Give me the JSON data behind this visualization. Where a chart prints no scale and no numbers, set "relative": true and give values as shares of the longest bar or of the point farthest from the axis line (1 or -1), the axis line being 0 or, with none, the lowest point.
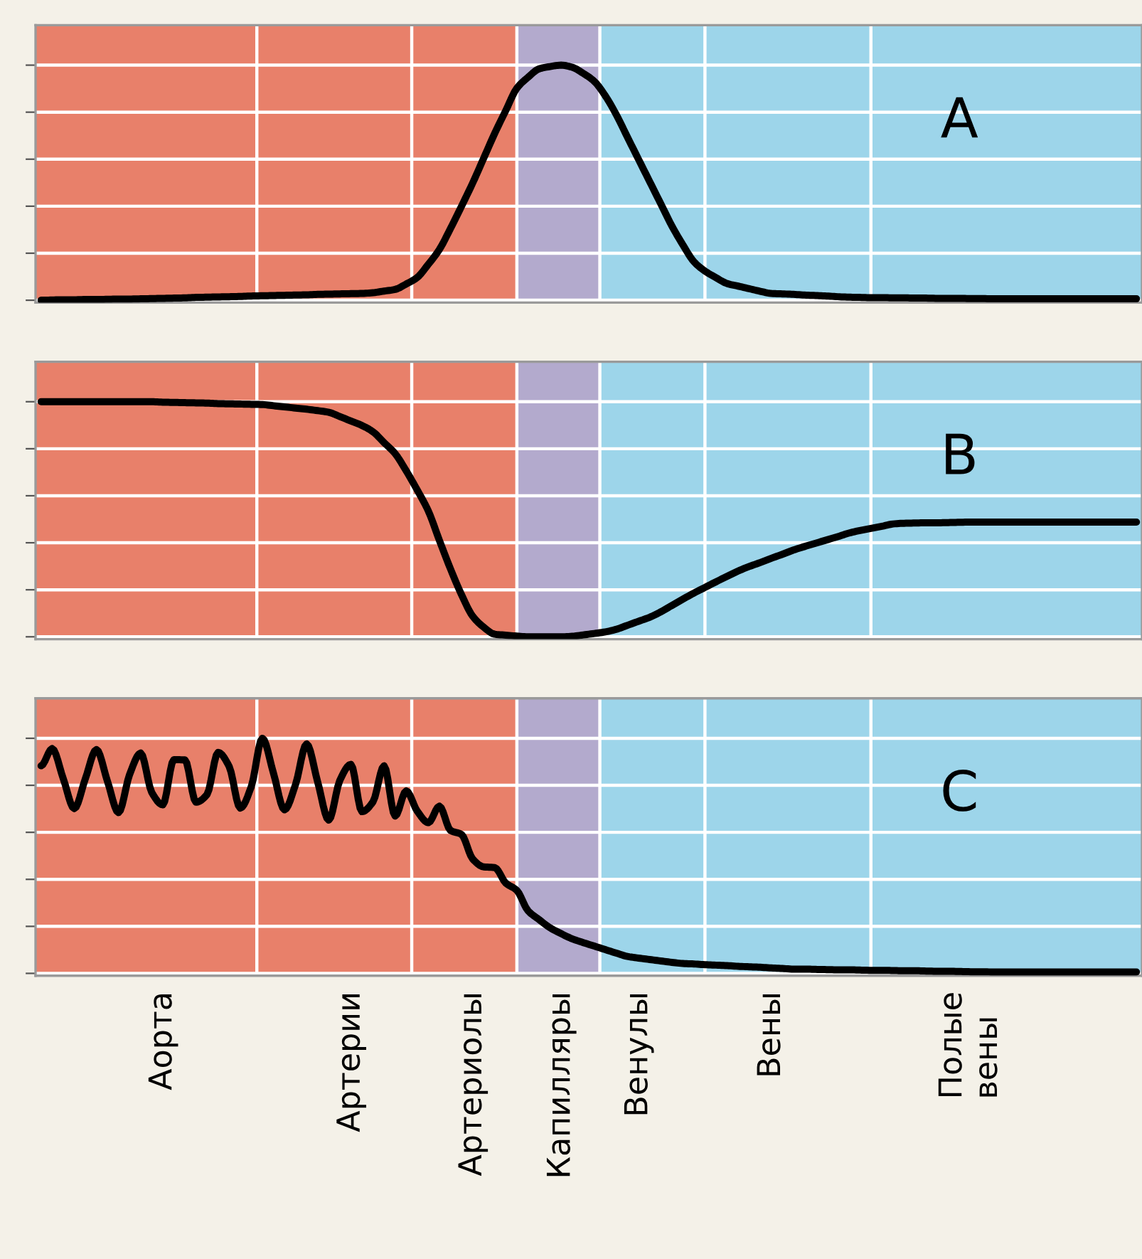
{
  "chart_data": [
    {
      "type": "line",
      "relative": true,
      "grid": true,
      "annotations": [
        "A"
      ],
      "categories": [
        null,
        null,
        null,
        null,
        null,
        null,
        null,
        null,
        null,
        null,
        null,
        null,
        null,
        null,
        null,
        null,
        null,
        null,
        null,
        null,
        null,
        null,
        null,
        null,
        null,
        null,
        null,
        null,
        null,
        null,
        null,
        null,
        null,
        null,
        null,
        null,
        null,
        null,
        null,
        null,
        null,
        null,
        null,
        null,
        null,
        null,
        null,
        null,
        null,
        null,
        null,
        null,
        null,
        null,
        null,
        null,
        null,
        null,
        null,
        null,
        null,
        null,
        null,
        null,
        null,
        null,
        null,
        null,
        null,
        null,
        null,
        null,
        null,
        null,
        null,
        null,
        null,
        null,
        null,
        null,
        null,
        null,
        null,
        null,
        null,
        null,
        null,
        null,
        null,
        null,
        null,
        null,
        null,
        null,
        null,
        null,
        null,
        null,
        null,
        null
      ],
      "series": [
        {
          "color": "#000000",
          "values": [
            0,
            0.001,
            0.002,
            0.002,
            0.003,
            0.003,
            0.004,
            0.005,
            0.005,
            0.006,
            0.007,
            0.008,
            0.009,
            0.01,
            0.012,
            0.013,
            0.014,
            0.015,
            0.016,
            0.018,
            0.019,
            0.02,
            0.021,
            0.022,
            0.023,
            0.025,
            0.026,
            0.027,
            0.028,
            0.029,
            0.032,
            0.039,
            0.046,
            0.069,
            0.097,
            0.153,
            0.216,
            0.305,
            0.4,
            0.498,
            0.604,
            0.71,
            0.807,
            0.902,
            0.948,
            0.984,
            0.994,
            1,
            0.991,
            0.965,
            0.931,
            0.869,
            0.788,
            0.693,
            0.599,
            0.505,
            0.411,
            0.317,
            0.236,
            0.164,
            0.124,
            0.096,
            0.071,
            0.06,
            0.049,
            0.038,
            0.029,
            0.027,
            0.025,
            0.022,
            0.02,
            0.018,
            0.015,
            0.013,
            0.012,
            0.011,
            0.011,
            0.01,
            0.01,
            0.009,
            0.009,
            0.008,
            0.008,
            0.008,
            0.007,
            0.007,
            0.006,
            0.006,
            0.006,
            0.006,
            0.006,
            0.006,
            0.006,
            0.006,
            0.006,
            0.006,
            0.006,
            0.006,
            0.006,
            0.006
          ]
        }
      ]
    },
    {
      "type": "line",
      "relative": true,
      "grid": true,
      "annotations": [
        "B"
      ],
      "categories": [
        null,
        null,
        null,
        null,
        null,
        null,
        null,
        null,
        null,
        null,
        null,
        null,
        null,
        null,
        null,
        null,
        null,
        null,
        null,
        null,
        null,
        null,
        null,
        null,
        null,
        null,
        null,
        null,
        null,
        null,
        null,
        null,
        null,
        null,
        null,
        null,
        null,
        null,
        null,
        null,
        null,
        null,
        null,
        null,
        null,
        null,
        null,
        null,
        null,
        null,
        null,
        null,
        null,
        null,
        null,
        null,
        null,
        null,
        null,
        null,
        null,
        null,
        null,
        null,
        null,
        null,
        null,
        null,
        null,
        null,
        null,
        null,
        null,
        null,
        null,
        null,
        null,
        null,
        null,
        null,
        null,
        null,
        null,
        null,
        null,
        null,
        null,
        null,
        null,
        null,
        null,
        null,
        null,
        null,
        null,
        null,
        null,
        null,
        null,
        null
      ],
      "series": [
        {
          "color": "#000000",
          "values": [
            1,
            1,
            1,
            1,
            1,
            1,
            1,
            1,
            1,
            1,
            1,
            0.998,
            0.997,
            0.996,
            0.995,
            0.994,
            0.992,
            0.991,
            0.99,
            0.989,
            0.988,
            0.983,
            0.978,
            0.973,
            0.968,
            0.962,
            0.955,
            0.937,
            0.918,
            0.899,
            0.872,
            0.826,
            0.779,
            0.706,
            0.624,
            0.535,
            0.41,
            0.289,
            0.179,
            0.088,
            0.041,
            0.011,
            0.007,
            0.003,
            0,
            0,
            0,
            0,
            0.002,
            0.008,
            0.014,
            0.021,
            0.032,
            0.049,
            0.066,
            0.083,
            0.106,
            0.133,
            0.16,
            0.186,
            0.21,
            0.234,
            0.257,
            0.28,
            0.299,
            0.316,
            0.334,
            0.351,
            0.369,
            0.384,
            0.398,
            0.412,
            0.426,
            0.441,
            0.452,
            0.461,
            0.47,
            0.48,
            0.483,
            0.484,
            0.485,
            0.485,
            0.486,
            0.487,
            0.488,
            0.488,
            0.488,
            0.488,
            0.488,
            0.488,
            0.488,
            0.488,
            0.488,
            0.488,
            0.488,
            0.488,
            0.488,
            0.488,
            0.488,
            0.488
          ]
        }
      ]
    },
    {
      "type": "line",
      "relative": true,
      "grid": true,
      "tick_labels": "x",
      "annotations": [
        "C"
      ],
      "categories": [
        null,
        null,
        null,
        null,
        null,
        null,
        null,
        null,
        null,
        null,
        null,
        "Аорта",
        null,
        null,
        null,
        null,
        null,
        null,
        null,
        null,
        null,
        null,
        null,
        null,
        null,
        null,
        null,
        null,
        "Артерии",
        null,
        null,
        null,
        null,
        null,
        null,
        null,
        null,
        null,
        null,
        "Артериолы",
        null,
        null,
        null,
        null,
        null,
        null,
        null,
        "Капилляры",
        null,
        null,
        null,
        null,
        null,
        null,
        "Венулы",
        null,
        null,
        null,
        null,
        null,
        null,
        null,
        null,
        null,
        null,
        null,
        "Вены",
        null,
        null,
        null,
        null,
        null,
        null,
        null,
        null,
        null,
        null,
        null,
        null,
        null,
        null,
        null,
        null,
        null,
        "Полые\nвены",
        null,
        null,
        null,
        null,
        null,
        null,
        null,
        null,
        null,
        null,
        null,
        null,
        null,
        null,
        null
      ],
      "series": [
        {
          "color": "#000000",
          "values": [
            0.883,
            0.956,
            0.829,
            0.701,
            0.828,
            0.952,
            0.817,
            0.684,
            0.846,
            0.937,
            0.77,
            0.717,
            0.909,
            0.908,
            0.728,
            0.761,
            0.94,
            0.88,
            0.703,
            0.795,
            1,
            0.852,
            0.696,
            0.804,
            0.976,
            0.814,
            0.652,
            0.821,
            0.889,
            0.688,
            0.73,
            0.883,
            0.669,
            0.776,
            0.69,
            0.641,
            0.711,
            0.608,
            0.591,
            0.487,
            0.453,
            0.45,
            0.384,
            0.353,
            0.267,
            0.229,
            0.194,
            0.169,
            0.147,
            0.131,
            0.116,
            0.101,
            0.086,
            0.072,
            0.065,
            0.059,
            0.053,
            0.047,
            0.042,
            0.04,
            0.037,
            0.035,
            0.033,
            0.03,
            0.028,
            0.026,
            0.023,
            0.021,
            0.018,
            0.018,
            0.017,
            0.016,
            0.015,
            0.015,
            0.014,
            0.013,
            0.013,
            0.012,
            0.011,
            0.011,
            0.01,
            0.009,
            0.009,
            0.008,
            0.007,
            0.007,
            0.006,
            0.006,
            0.006,
            0.006,
            0.006,
            0.006,
            0.006,
            0.006,
            0.006,
            0.006,
            0.006,
            0.006,
            0.006,
            0.006
          ]
        }
      ]
    }
  ]
}
